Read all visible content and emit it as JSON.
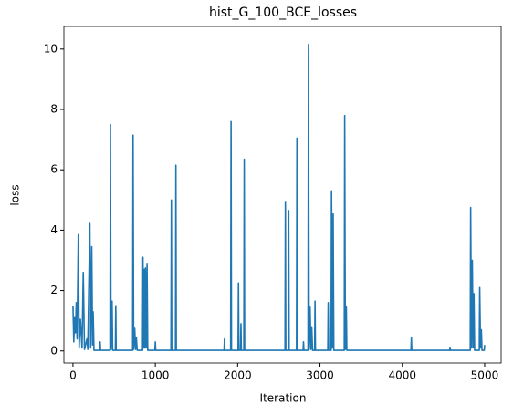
{
  "chart_data": {
    "type": "line",
    "title": "hist_G_100_BCE_losses",
    "x_label": "Iteration",
    "y_label": "loss",
    "x": [
      0,
      10,
      20,
      30,
      40,
      50,
      65,
      75,
      90,
      110,
      125,
      140,
      170,
      180,
      205,
      215,
      228,
      238,
      245,
      255,
      325,
      330,
      335,
      450,
      455,
      462,
      475,
      482,
      515,
      520,
      525,
      725,
      730,
      737,
      750,
      760,
      770,
      780,
      845,
      850,
      858,
      865,
      872,
      880,
      890,
      900,
      908,
      995,
      1000,
      1005,
      1190,
      1195,
      1200,
      1245,
      1250,
      1255,
      1835,
      1840,
      1845,
      1915,
      1920,
      1925,
      2005,
      2010,
      2015,
      2035,
      2040,
      2045,
      2075,
      2080,
      2085,
      2575,
      2580,
      2585,
      2615,
      2620,
      2625,
      2715,
      2720,
      2725,
      2795,
      2800,
      2805,
      2855,
      2860,
      2868,
      2880,
      2890,
      2900,
      2910,
      2935,
      2940,
      2945,
      3095,
      3100,
      3105,
      3135,
      3140,
      3150,
      3160,
      3168,
      3295,
      3300,
      3308,
      3320,
      3326,
      4105,
      4110,
      4115,
      4575,
      4580,
      4585,
      4825,
      4830,
      4840,
      4850,
      4860,
      4870,
      4878,
      4935,
      4940,
      4950,
      4960,
      4968,
      4995,
      5000
    ],
    "series": [
      {
        "name": "loss",
        "color": "#1f77b4",
        "values": [
          1.5,
          0.3,
          1.1,
          0.6,
          1.6,
          0.4,
          3.85,
          0.1,
          1.05,
          0.1,
          2.6,
          0.05,
          0.4,
          0.05,
          4.25,
          0.1,
          3.45,
          0.2,
          1.3,
          0.02,
          0.02,
          0.3,
          0.02,
          0.02,
          7.5,
          0.05,
          1.65,
          0.02,
          0.02,
          1.5,
          0.02,
          0.02,
          7.15,
          0.05,
          0.75,
          0.05,
          0.45,
          0.02,
          0.02,
          3.1,
          0.1,
          2.7,
          0.1,
          2.75,
          0.1,
          2.9,
          0.02,
          0.02,
          0.3,
          0.02,
          0.02,
          5.0,
          0.02,
          0.02,
          6.15,
          0.02,
          0.02,
          0.4,
          0.02,
          0.02,
          7.6,
          0.02,
          0.02,
          2.25,
          0.02,
          0.02,
          0.9,
          0.02,
          0.02,
          6.35,
          0.02,
          0.02,
          4.95,
          0.02,
          0.02,
          4.65,
          0.02,
          0.02,
          7.05,
          0.02,
          0.02,
          0.3,
          0.02,
          0.02,
          10.15,
          0.05,
          1.45,
          0.05,
          0.8,
          0.02,
          0.02,
          1.65,
          0.02,
          0.02,
          1.6,
          0.02,
          0.02,
          5.3,
          0.1,
          4.55,
          0.02,
          0.02,
          7.8,
          0.05,
          1.45,
          0.02,
          0.02,
          0.45,
          0.02,
          0.02,
          0.12,
          0.02,
          0.02,
          4.75,
          0.1,
          3.0,
          0.1,
          1.9,
          0.02,
          0.02,
          2.1,
          0.1,
          0.7,
          0.02,
          0.02,
          0.2
        ]
      }
    ],
    "xlim": [
      -110,
      5200
    ],
    "xticks": [
      0,
      1000,
      2000,
      3000,
      4000,
      5000
    ],
    "ylim": [
      -0.4,
      10.75
    ],
    "yticks": [
      0,
      2,
      4,
      6,
      8,
      10
    ],
    "grid": false
  }
}
